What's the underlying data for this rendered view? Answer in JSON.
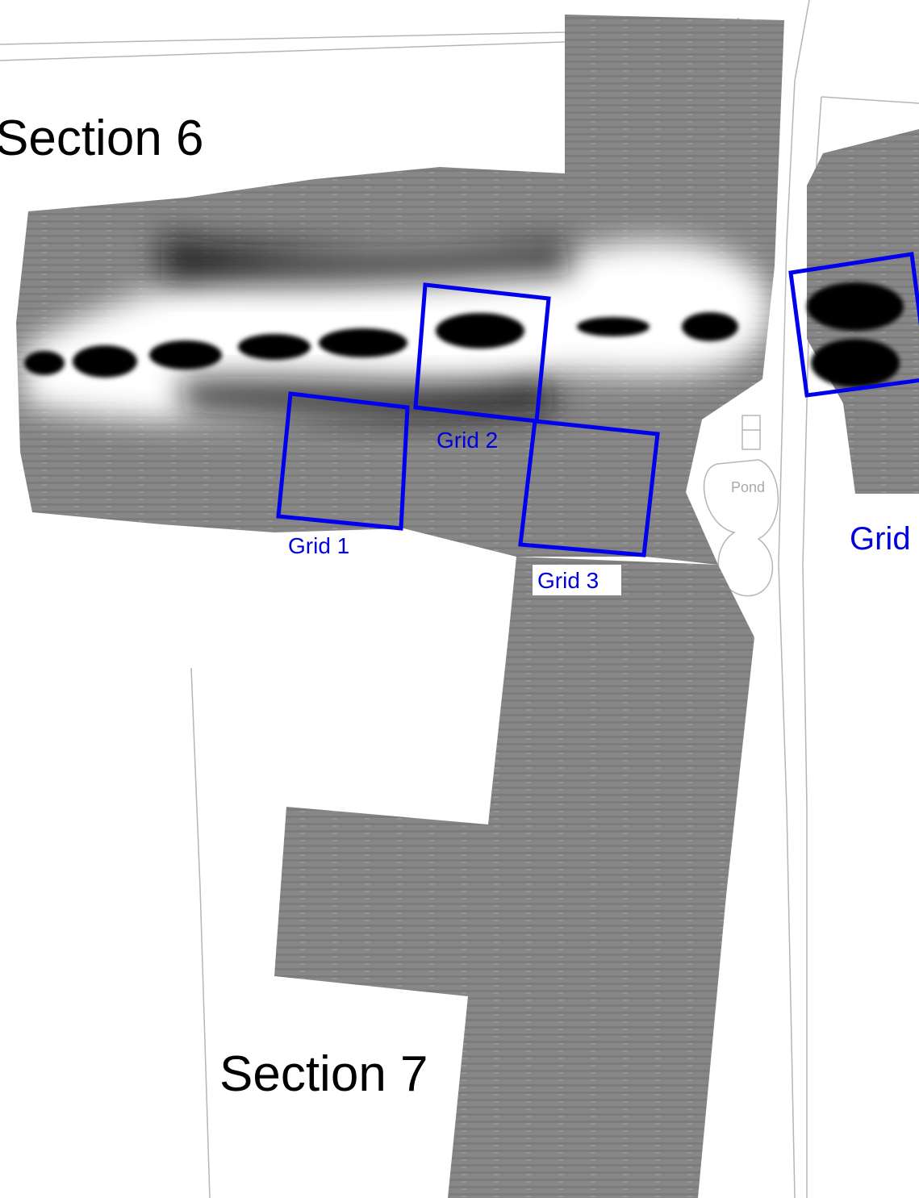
{
  "sections": [
    "Section 6",
    "Section 7"
  ],
  "grids": [
    "Grid 1",
    "Grid 2",
    "Grid 3",
    "Grid"
  ],
  "features": {
    "pond": "Pond"
  }
}
